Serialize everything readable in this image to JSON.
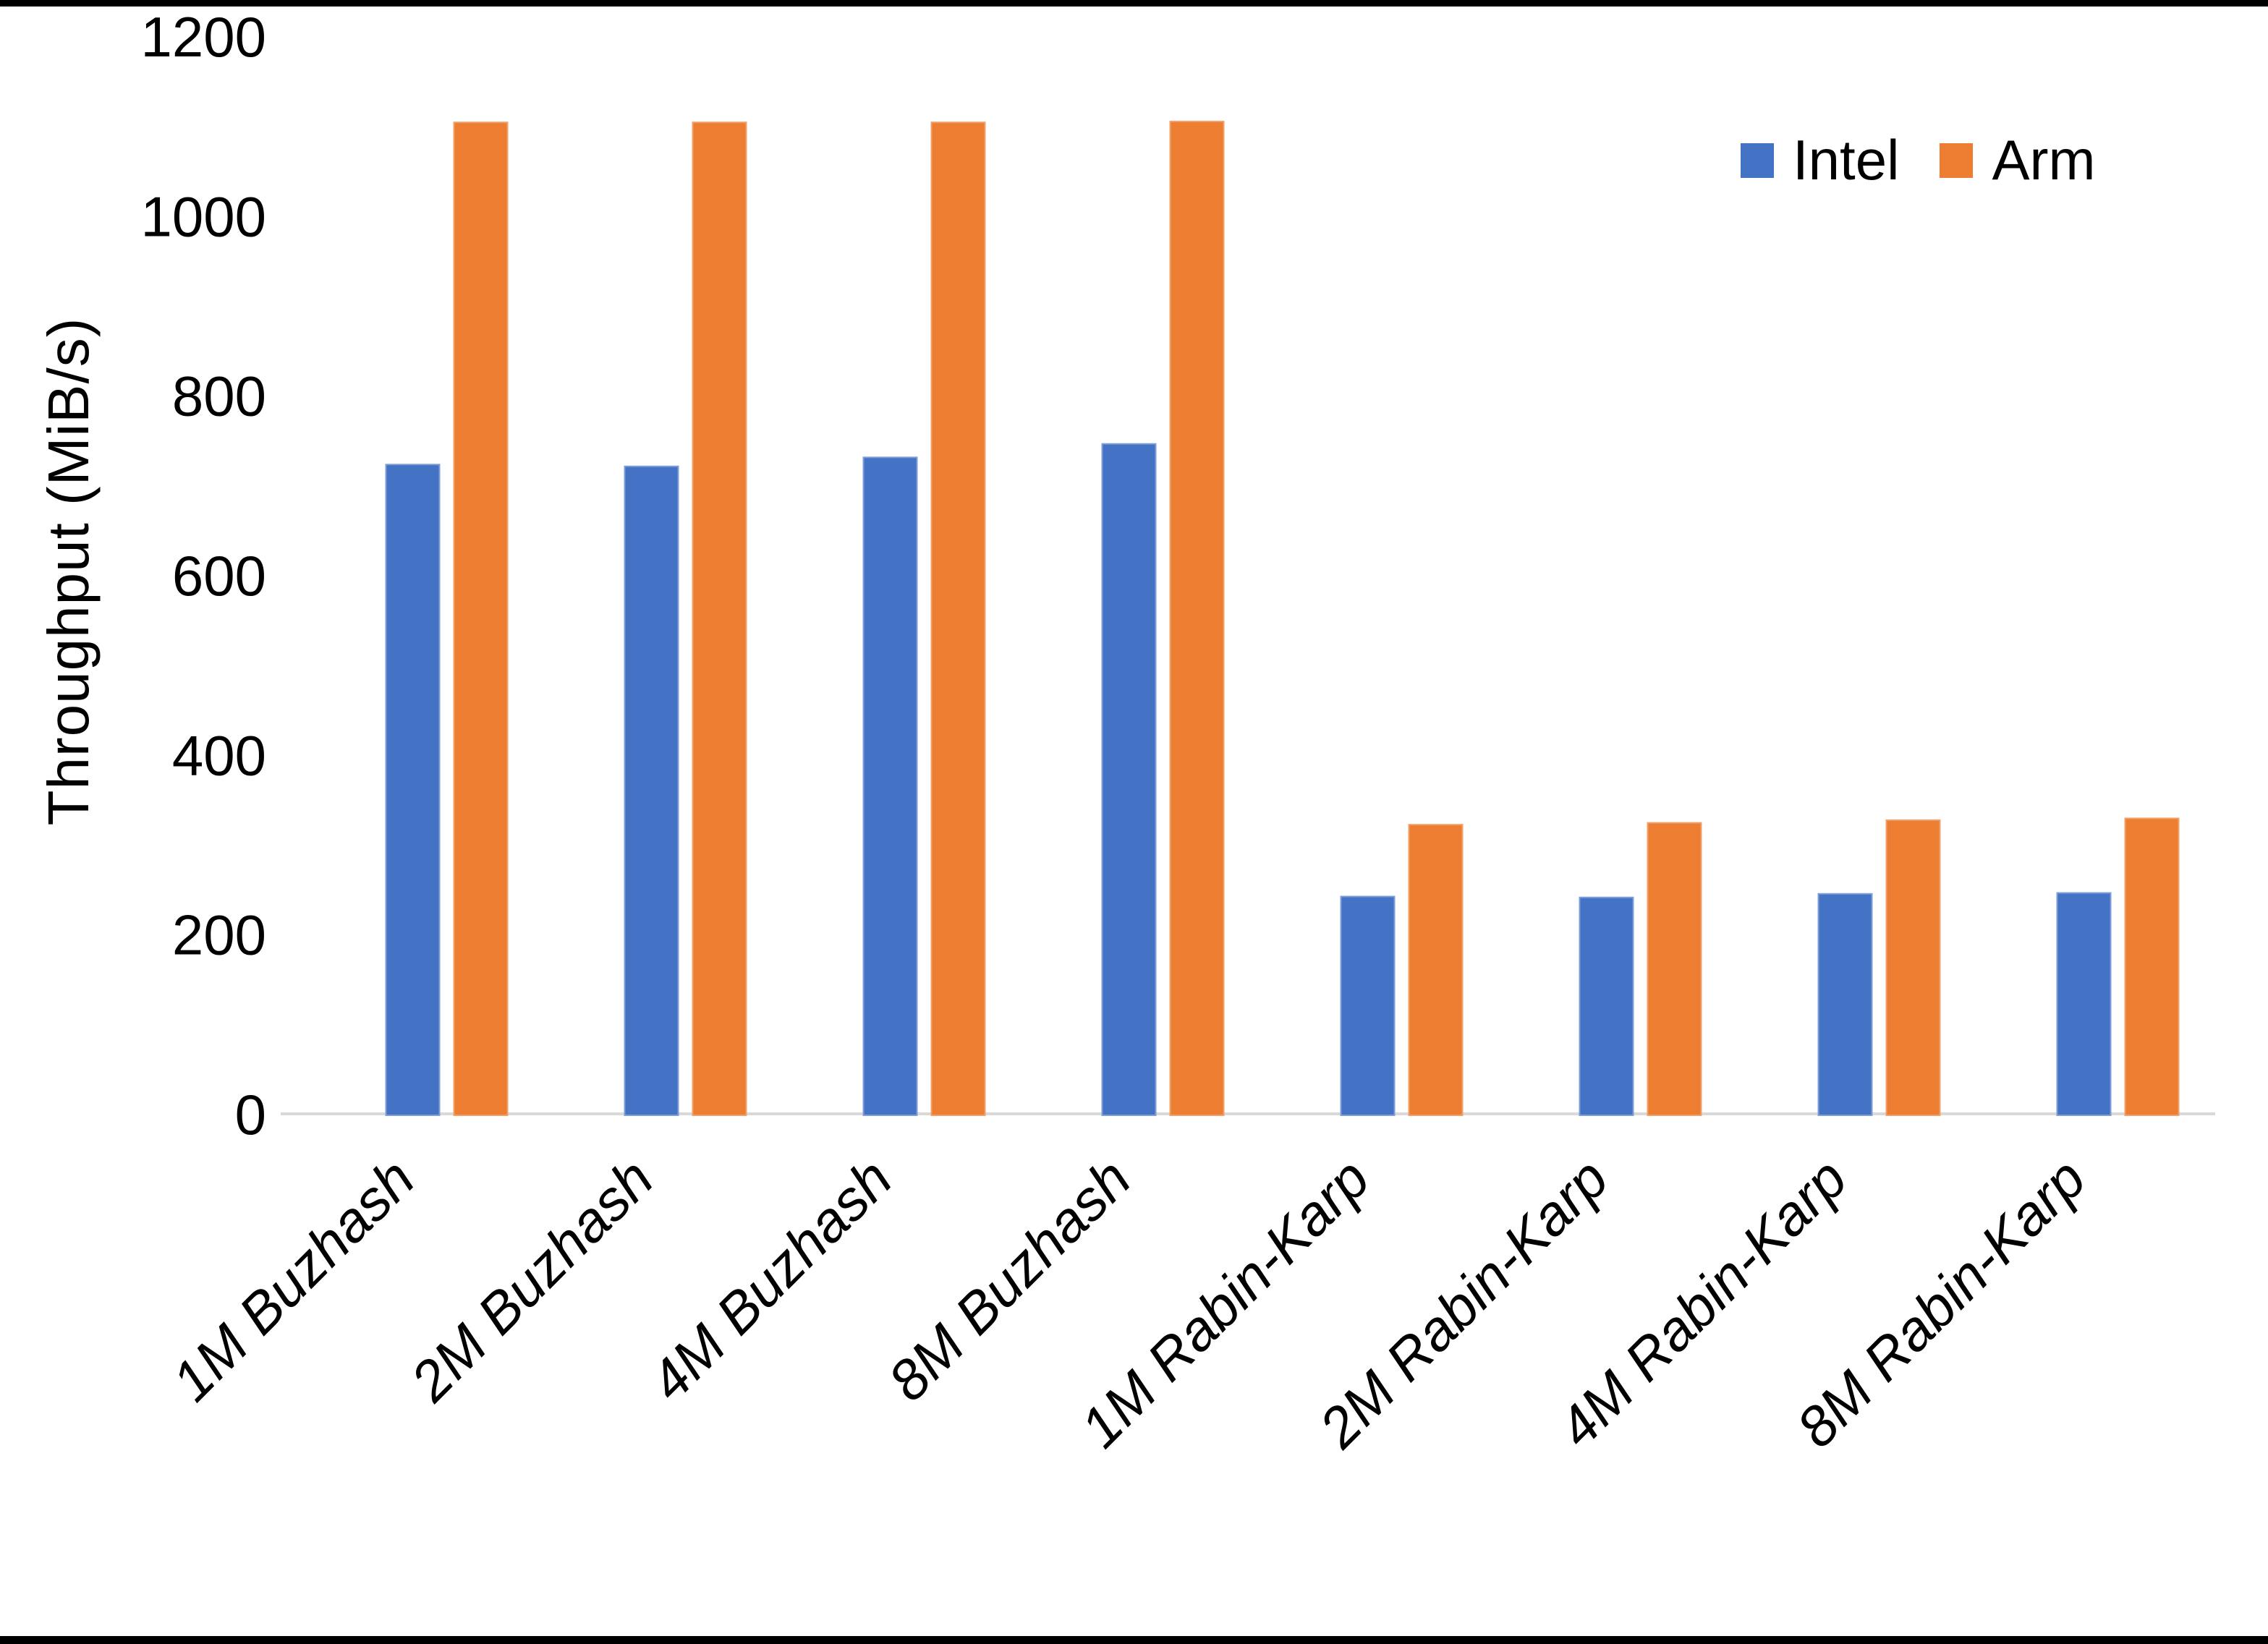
{
  "chart_data": {
    "type": "bar",
    "title": "",
    "xlabel": "",
    "ylabel": "Throughput (MiB/s)",
    "categories": [
      "1M Buzhash",
      "2M Buzhash",
      "4M Buzhash",
      "8M Buzhash",
      "1M Rabin-Karp",
      "2M Rabin-Karp",
      "4M Rabin-Karp",
      "8M Rabin-Karp"
    ],
    "series": [
      {
        "name": "Intel",
        "color": "#4472C4",
        "values": [
          723,
          721,
          731,
          746,
          242,
          241,
          245,
          246
        ]
      },
      {
        "name": "Arm",
        "color": "#ED7D31",
        "values": [
          1104,
          1104,
          1104,
          1105,
          322,
          324,
          327,
          329
        ]
      }
    ],
    "ylim": [
      0,
      1200
    ],
    "yticks": [
      0,
      200,
      400,
      600,
      800,
      1000,
      1200
    ],
    "grid": false,
    "legend_position": "top-right",
    "colors": {
      "axis_line": "#D9D9D9",
      "text": "#000000",
      "background": "#FFFFFF",
      "frame_bars": "#000000"
    }
  }
}
